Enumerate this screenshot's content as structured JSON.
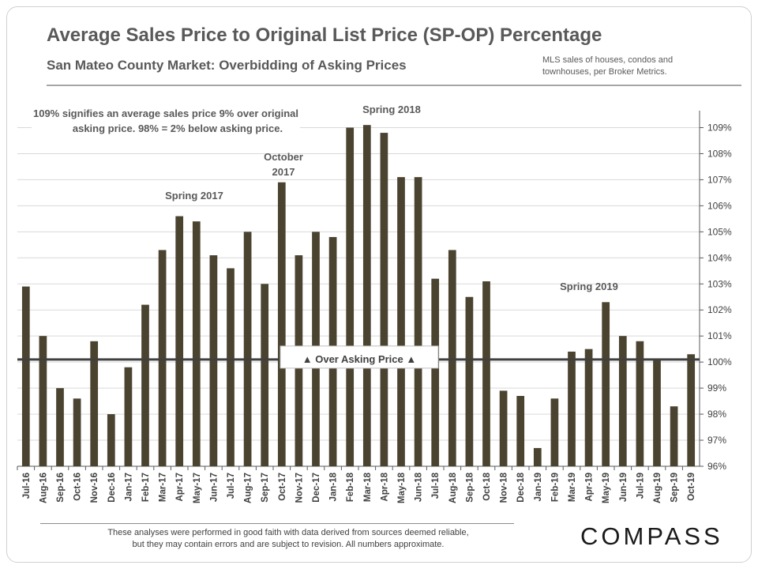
{
  "header": {
    "title": "Average Sales Price to Original List Price (SP-OP) Percentage",
    "subtitle": "San Mateo County Market: Overbidding of Asking Prices",
    "source_line1": "MLS sales of houses, condos and",
    "source_line2": "townhouses, per Broker Metrics."
  },
  "footer": {
    "disclaimer_line1": "These analyses  were performed in good faith with data derived from sources deemed reliable,",
    "disclaimer_line2": "but they may contain  errors and are subject to revision.  All numbers approximate.",
    "brand": "COMPASS"
  },
  "chart_data": {
    "type": "bar",
    "title": "",
    "xlabel": "",
    "ylabel": "",
    "ylim": [
      96,
      109.5
    ],
    "y_ticks": [
      96,
      97,
      98,
      99,
      100,
      101,
      102,
      103,
      104,
      105,
      106,
      107,
      108,
      109
    ],
    "y_tick_labels": [
      "96%",
      "97%",
      "98%",
      "99%",
      "100%",
      "101%",
      "102%",
      "103%",
      "104%",
      "105%",
      "106%",
      "107%",
      "108%",
      "109%"
    ],
    "y_axis_side": "right",
    "grid": true,
    "bar_color": "#4a4330",
    "categories": [
      "Jul-16",
      "Aug-16",
      "Sep-16",
      "Oct-16",
      "Nov-16",
      "Dec-16",
      "Jan-17",
      "Feb-17",
      "Mar-17",
      "Apr-17",
      "May-17",
      "Jun-17",
      "Jul-17",
      "Aug-17",
      "Sep-17",
      "Oct-17",
      "Nov-17",
      "Dec-17",
      "Jan-18",
      "Feb-18",
      "Mar-18",
      "Apr-18",
      "May-18",
      "Jun-18",
      "Jul-18",
      "Aug-18",
      "Sep-18",
      "Oct-18",
      "Nov-18",
      "Dec-18",
      "Jan-19",
      "Feb-19",
      "Mar-19",
      "Apr-19",
      "May-19",
      "Jun-19",
      "Jul-19",
      "Aug-19",
      "Sep-19",
      "Oct-19"
    ],
    "values": [
      102.9,
      101.0,
      99.0,
      98.6,
      100.8,
      98.0,
      99.8,
      102.2,
      104.3,
      105.6,
      105.4,
      104.1,
      103.6,
      105.0,
      103.0,
      106.9,
      104.1,
      105.0,
      104.8,
      109.0,
      109.1,
      108.8,
      107.1,
      107.1,
      103.2,
      104.3,
      102.5,
      103.1,
      98.9,
      98.7,
      96.7,
      98.6,
      100.4,
      100.5,
      102.3,
      101.0,
      100.8,
      100.1,
      98.3,
      100.3
    ],
    "reference_line": {
      "value": 100.1,
      "label": "▲ Over Asking Price ▲"
    },
    "annotations": [
      {
        "text": "109% signifies an average sales price 9% over original",
        "text2": "asking price. 98% = 2% below asking price.",
        "anchor": "Sep-16"
      },
      {
        "text": "Spring 2017",
        "anchor": "Apr-17"
      },
      {
        "text": "October",
        "text2": "2017",
        "anchor": "Oct-17"
      },
      {
        "text": "Spring 2018",
        "anchor": "Mar-18"
      },
      {
        "text": "Spring 2019",
        "anchor": "Apr-19"
      }
    ]
  }
}
